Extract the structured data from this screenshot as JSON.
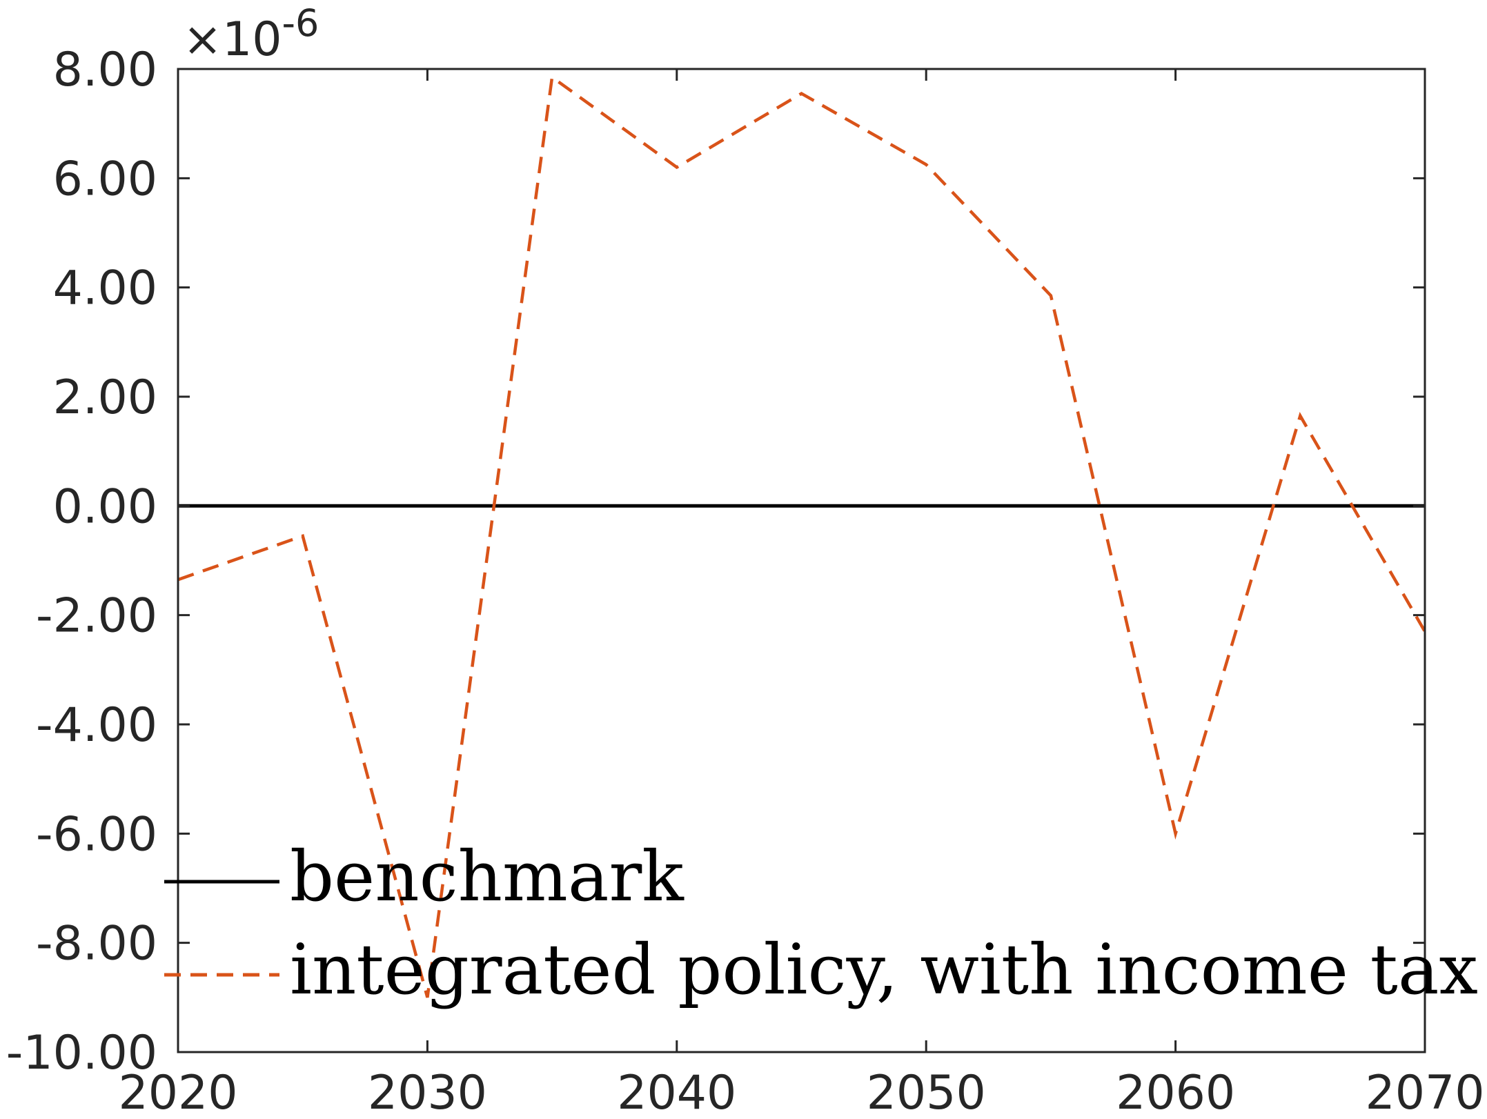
{
  "chart_data": {
    "type": "line",
    "title": "",
    "xlabel": "",
    "ylabel": "",
    "xlim": [
      2020,
      2070
    ],
    "ylim": [
      -10,
      8
    ],
    "x_ticks": [
      "2020",
      "2030",
      "2040",
      "2050",
      "2060",
      "2070"
    ],
    "y_ticks": [
      "8.00",
      "6.00",
      "4.00",
      "2.00",
      "0.00",
      "-2.00",
      "-4.00",
      "-6.00",
      "-8.00",
      "-10.00"
    ],
    "y_exponent": {
      "base": "×10",
      "power": "-6"
    },
    "grid": false,
    "legend_placement": "bottom-left",
    "x": [
      2020,
      2025,
      2030,
      2035,
      2040,
      2045,
      2050,
      2055,
      2060,
      2065,
      2070
    ],
    "series": [
      {
        "name": "benchmark",
        "style": "solid",
        "color": "#000000",
        "values": [
          0,
          0,
          0,
          0,
          0,
          0,
          0,
          0,
          0,
          0,
          0
        ]
      },
      {
        "name": "integrated policy, with income tax",
        "style": "dashed",
        "color": "#d95319",
        "values": [
          -1.35,
          -0.55,
          -9.0,
          7.85,
          6.2,
          7.55,
          6.25,
          3.85,
          -6.0,
          1.65,
          -2.3
        ]
      }
    ]
  }
}
